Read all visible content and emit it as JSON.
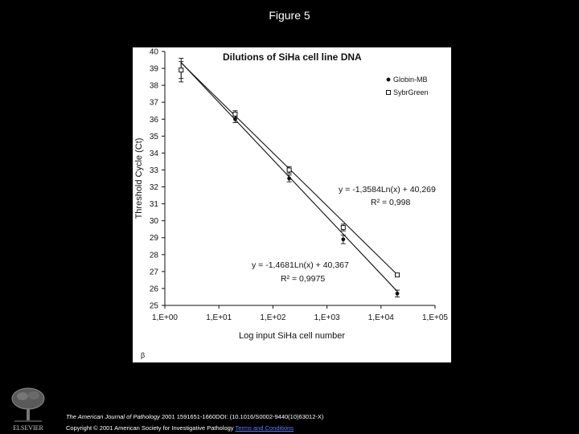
{
  "slide": {
    "title": "Figure 5"
  },
  "chart_data": {
    "type": "line",
    "title": "Dilutions of SiHa cell line DNA",
    "xlabel": "Log input SiHa cell number",
    "ylabel": "Threshold Cycle (Ct)",
    "xscale": "log",
    "x_tick_labels": [
      "1,E+00",
      "1,E+01",
      "1,E+02",
      "1,E+03",
      "1,E+04",
      "1,E+05"
    ],
    "x_tick_values": [
      1,
      10,
      100,
      1000,
      10000,
      100000
    ],
    "ylim": [
      25,
      40
    ],
    "y_ticks": [
      25,
      26,
      27,
      28,
      29,
      30,
      31,
      32,
      33,
      34,
      35,
      36,
      37,
      38,
      39,
      40
    ],
    "grid": false,
    "legend_position": "top-right",
    "series": [
      {
        "name": "Globin-MB",
        "marker": "filled-circle",
        "x": [
          2,
          20,
          200,
          2000,
          20000
        ],
        "y": [
          38.9,
          36.0,
          32.5,
          28.9,
          25.7
        ],
        "err": [
          0.5,
          0.2,
          0.2,
          0.25,
          0.2
        ],
        "fit": {
          "slope": -1.4681,
          "intercept": 40.367
        }
      },
      {
        "name": "SybrGreen",
        "marker": "open-square",
        "x": [
          2,
          20,
          200,
          2000,
          20000
        ],
        "y": [
          38.9,
          36.3,
          33.0,
          29.6,
          26.8
        ],
        "err": [
          0.7,
          0.2,
          0.2,
          0.2,
          0.1
        ],
        "fit": {
          "slope": -1.3584,
          "intercept": 40.269
        }
      }
    ],
    "annotations": {
      "eq_sybr": "y = -1,3584Ln(x) + 40,269",
      "r2_sybr": "R² = 0,998",
      "eq_globin": "y = -1,4681Ln(x) + 40,367",
      "r2_globin": "R² = 0,9975"
    },
    "corner_mark": "β"
  },
  "footer": {
    "logo_text": "ELSEVIER",
    "journal": "The American Journal of Pathology",
    "citation": "2001 1591651-1660DOI: (10.1016/S0002-9440(10)63012-X)",
    "copyright": "Copyright © 2001 American Society for Investigative Pathology",
    "terms_link": "Terms and Conditions"
  },
  "colors": {
    "background": "#000000",
    "panel": "#ffffff",
    "ink": "#111111",
    "link": "#5b7dff"
  }
}
